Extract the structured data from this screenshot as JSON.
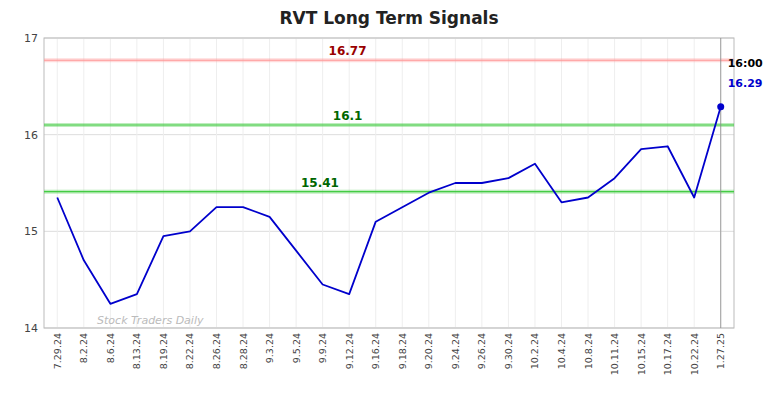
{
  "chart_data": {
    "type": "line",
    "title": "RVT Long Term Signals",
    "categories": [
      "7.29.24",
      "8.2.24",
      "8.6.24",
      "8.13.24",
      "8.19.24",
      "8.22.24",
      "8.26.24",
      "8.28.24",
      "9.3.24",
      "9.5.24",
      "9.9.24",
      "9.12.24",
      "9.16.24",
      "9.18.24",
      "9.20.24",
      "9.24.24",
      "9.26.24",
      "9.30.24",
      "10.2.24",
      "10.4.24",
      "10.8.24",
      "10.11.24",
      "10.15.24",
      "10.17.24",
      "10.22.24",
      "1.27.25"
    ],
    "values": [
      15.35,
      14.7,
      14.25,
      14.35,
      14.95,
      15.0,
      15.25,
      15.25,
      15.15,
      14.8,
      14.45,
      14.35,
      15.1,
      15.25,
      15.4,
      15.5,
      15.5,
      15.55,
      15.7,
      15.3,
      15.35,
      15.55,
      15.85,
      15.88,
      15.35,
      16.29
    ],
    "color": "#0000cc",
    "ylim": [
      14.0,
      17.0
    ],
    "yticks": [
      14,
      15,
      16,
      17
    ],
    "grid": true,
    "annotations": [
      {
        "type": "hline",
        "value": 16.77,
        "label": "16.77",
        "color": "#ff9999",
        "label_color": "#990000"
      },
      {
        "type": "hline",
        "value": 16.1,
        "label": "16.1",
        "color": "#44cc44",
        "label_color": "#006600"
      },
      {
        "type": "hline",
        "value": 15.41,
        "label": "15.41",
        "color": "#44cc44",
        "label_color": "#006600"
      },
      {
        "type": "point_label",
        "text": "16:00"
      },
      {
        "type": "point_label",
        "text": "16.29",
        "color": "#0000cc"
      },
      {
        "type": "watermark",
        "text": "Stock Traders Daily",
        "color": "#bbbbbb"
      }
    ]
  }
}
